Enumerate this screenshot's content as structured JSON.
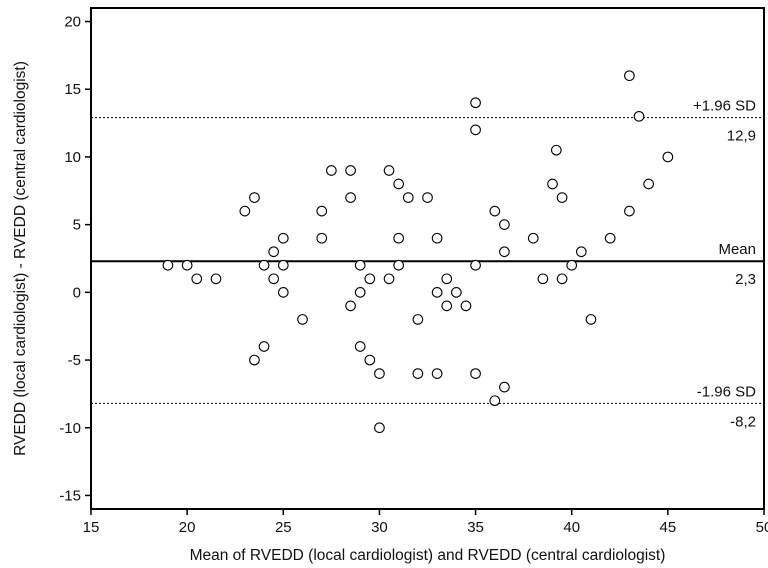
{
  "chart_data": {
    "type": "scatter",
    "title": "",
    "xlabel": "Mean of RVEDD (local cardiologist) and RVEDD (central cardiologist)",
    "ylabel": "RVEDD (local cardiologist) - RVEDD (central cardiologist)",
    "xlim": [
      15,
      50
    ],
    "ylim": [
      -16,
      21
    ],
    "x_ticks": [
      15,
      20,
      25,
      30,
      35,
      40,
      45,
      50
    ],
    "y_ticks": [
      -15,
      -10,
      -5,
      0,
      5,
      10,
      15,
      20
    ],
    "grid": false,
    "points": [
      [
        19,
        2
      ],
      [
        20,
        2
      ],
      [
        20.5,
        1
      ],
      [
        21.5,
        1
      ],
      [
        23,
        6
      ],
      [
        23.5,
        7
      ],
      [
        23.5,
        -5
      ],
      [
        24,
        2
      ],
      [
        24,
        -4
      ],
      [
        24.5,
        3
      ],
      [
        24.5,
        1
      ],
      [
        25,
        4
      ],
      [
        25,
        2
      ],
      [
        25,
        0
      ],
      [
        26,
        -2
      ],
      [
        27,
        6
      ],
      [
        27,
        4
      ],
      [
        27.5,
        9
      ],
      [
        28.5,
        9
      ],
      [
        28.5,
        7
      ],
      [
        28.5,
        -1
      ],
      [
        29,
        2
      ],
      [
        29,
        0
      ],
      [
        29,
        -4
      ],
      [
        29.5,
        1
      ],
      [
        29.5,
        -5
      ],
      [
        30,
        -6
      ],
      [
        30,
        -10
      ],
      [
        30.5,
        9
      ],
      [
        30.5,
        1
      ],
      [
        31,
        8
      ],
      [
        31,
        4
      ],
      [
        31,
        2
      ],
      [
        31.5,
        7
      ],
      [
        32,
        -2
      ],
      [
        32,
        -6
      ],
      [
        32.5,
        7
      ],
      [
        33,
        4
      ],
      [
        33,
        0
      ],
      [
        33,
        -6
      ],
      [
        33.5,
        1
      ],
      [
        33.5,
        -1
      ],
      [
        34,
        0
      ],
      [
        34.5,
        -1
      ],
      [
        35,
        14
      ],
      [
        35,
        12
      ],
      [
        35,
        2
      ],
      [
        35,
        -6
      ],
      [
        36,
        6
      ],
      [
        36,
        -8
      ],
      [
        36.5,
        5
      ],
      [
        36.5,
        3
      ],
      [
        36.5,
        -7
      ],
      [
        38,
        4
      ],
      [
        38.5,
        1
      ],
      [
        39,
        8
      ],
      [
        39.2,
        10.5
      ],
      [
        39.5,
        7
      ],
      [
        39.5,
        1
      ],
      [
        40,
        2
      ],
      [
        40.5,
        3
      ],
      [
        41,
        -2
      ],
      [
        42,
        4
      ],
      [
        43,
        16
      ],
      [
        43,
        6
      ],
      [
        43.5,
        13
      ],
      [
        44,
        8
      ],
      [
        45,
        10
      ]
    ],
    "reference_lines": [
      {
        "name": "+1.96 SD",
        "value": 12.9,
        "value_label": "12,9",
        "style": "dotted"
      },
      {
        "name": "Mean",
        "value": 2.3,
        "value_label": "2,3",
        "style": "solid"
      },
      {
        "name": "-1.96 SD",
        "value": -8.2,
        "value_label": "-8,2",
        "style": "dotted"
      }
    ]
  }
}
